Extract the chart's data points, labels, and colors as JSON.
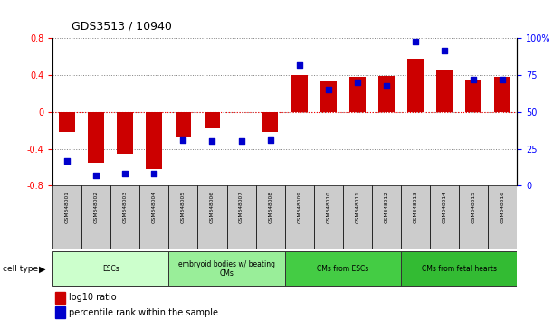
{
  "title": "GDS3513 / 10940",
  "samples": [
    "GSM348001",
    "GSM348002",
    "GSM348003",
    "GSM348004",
    "GSM348005",
    "GSM348006",
    "GSM348007",
    "GSM348008",
    "GSM348009",
    "GSM348010",
    "GSM348011",
    "GSM348012",
    "GSM348013",
    "GSM348014",
    "GSM348015",
    "GSM348016"
  ],
  "log10_ratio": [
    -0.22,
    -0.55,
    -0.45,
    -0.62,
    -0.28,
    -0.18,
    0.0,
    -0.22,
    0.4,
    0.33,
    0.38,
    0.39,
    0.58,
    0.46,
    0.35,
    0.38
  ],
  "percentile_rank": [
    17,
    7,
    8,
    8,
    31,
    30,
    30,
    31,
    82,
    65,
    70,
    68,
    98,
    92,
    72,
    72
  ],
  "cell_type_groups": [
    {
      "label": "ESCs",
      "start": 0,
      "end": 3,
      "color": "#ccffcc"
    },
    {
      "label": "embryoid bodies w/ beating\nCMs",
      "start": 4,
      "end": 7,
      "color": "#99ee99"
    },
    {
      "label": "CMs from ESCs",
      "start": 8,
      "end": 11,
      "color": "#44cc44"
    },
    {
      "label": "CMs from fetal hearts",
      "start": 12,
      "end": 15,
      "color": "#33bb33"
    }
  ],
  "bar_color": "#cc0000",
  "dot_color": "#0000cc",
  "ylim_left": [
    -0.8,
    0.8
  ],
  "ylim_right": [
    0,
    100
  ],
  "yticks_left": [
    -0.8,
    -0.4,
    0.0,
    0.4,
    0.8
  ],
  "ytick_labels_left": [
    "-0.8",
    "-0.4",
    "0",
    "0.4",
    "0.8"
  ],
  "yticks_right": [
    0,
    25,
    50,
    75,
    100
  ],
  "ytick_labels_right": [
    "0",
    "25",
    "50",
    "75",
    "100%"
  ]
}
